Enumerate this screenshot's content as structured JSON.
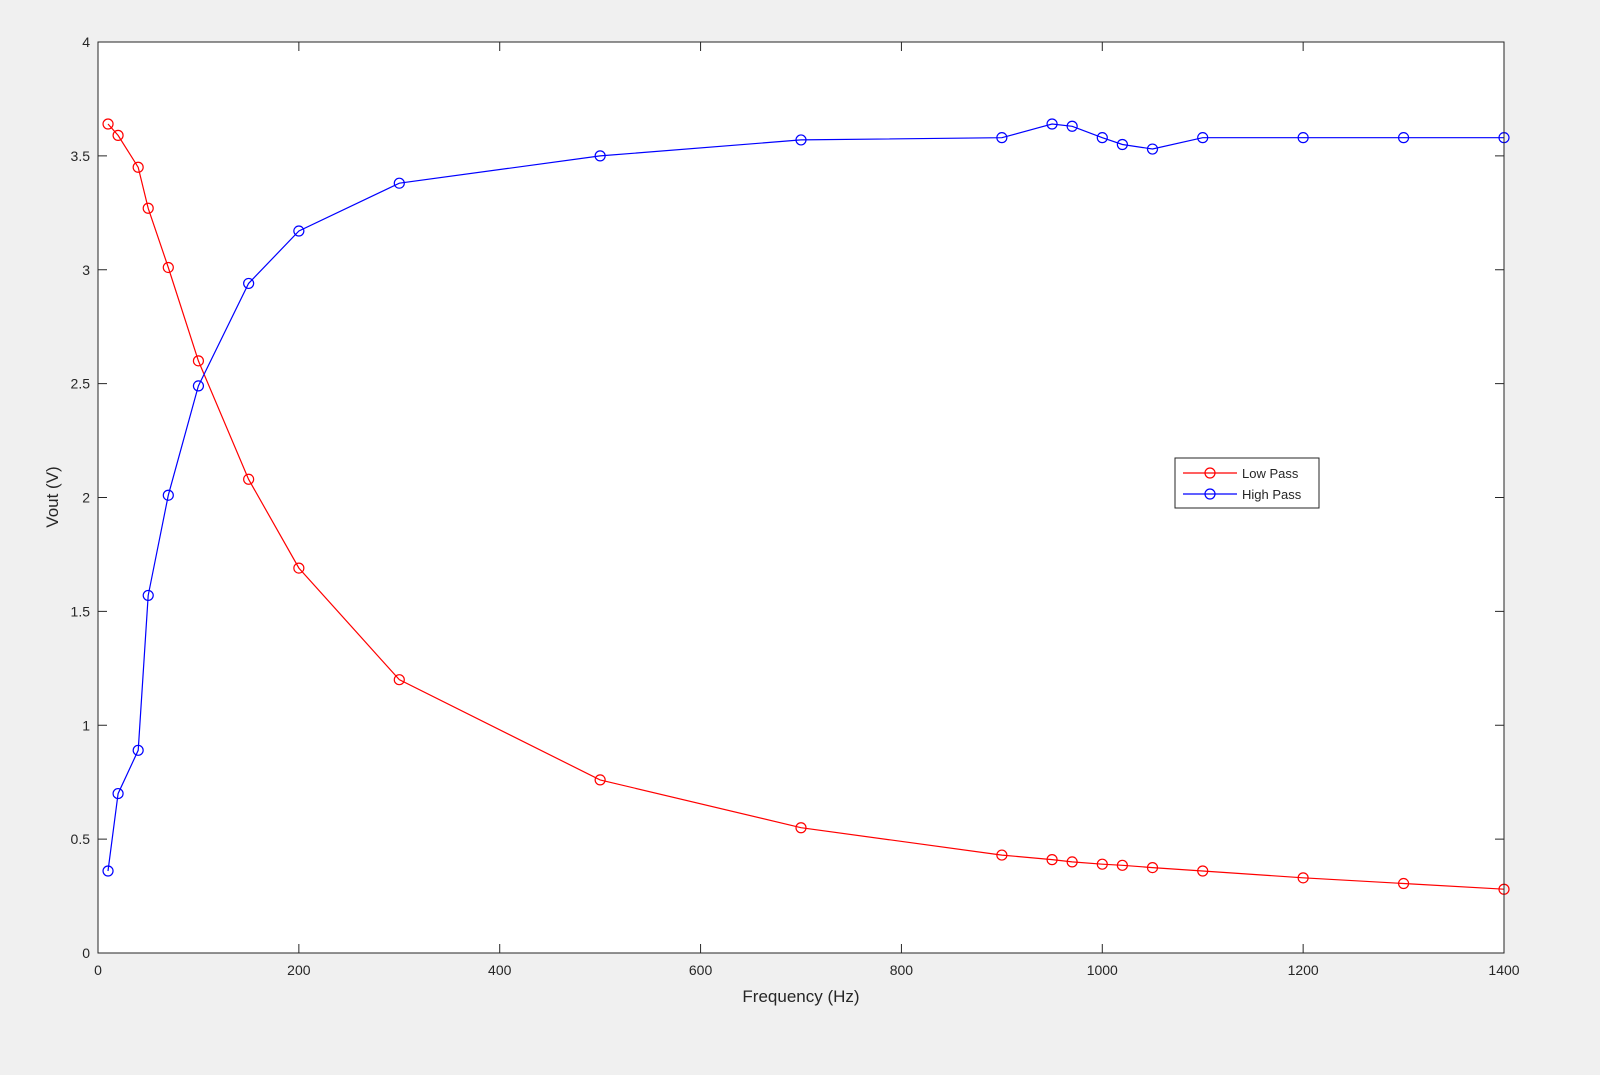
{
  "chart_data": {
    "type": "line",
    "title": "",
    "xlabel": "Frequency (Hz)",
    "ylabel": "Vout (V)",
    "xlim": [
      0,
      1400
    ],
    "ylim": [
      0,
      4
    ],
    "x_ticks": [
      "0",
      "200",
      "400",
      "600",
      "800",
      "1000",
      "1200",
      "1400"
    ],
    "y_ticks": [
      "0",
      "0.5",
      "1",
      "1.5",
      "2",
      "2.5",
      "3",
      "3.5",
      "4"
    ],
    "grid": false,
    "legend_position": "right-center",
    "marker": "circle",
    "series": [
      {
        "name": "Low Pass",
        "color": "#ff0000",
        "x": [
          10,
          20,
          40,
          50,
          70,
          100,
          150,
          200,
          300,
          500,
          700,
          900,
          950,
          970,
          1000,
          1020,
          1050,
          1100,
          1200,
          1300,
          1400
        ],
        "y": [
          3.64,
          3.59,
          3.45,
          3.27,
          3.01,
          2.6,
          2.08,
          1.69,
          1.2,
          0.76,
          0.55,
          0.43,
          0.41,
          0.4,
          0.39,
          0.385,
          0.375,
          0.36,
          0.33,
          0.305,
          0.28
        ]
      },
      {
        "name": "High Pass",
        "color": "#0000ff",
        "x": [
          10,
          20,
          40,
          50,
          70,
          100,
          150,
          200,
          300,
          500,
          700,
          900,
          950,
          970,
          1000,
          1020,
          1050,
          1100,
          1200,
          1300,
          1400
        ],
        "y": [
          0.36,
          0.7,
          0.89,
          1.57,
          2.01,
          2.49,
          2.94,
          3.17,
          3.38,
          3.5,
          3.57,
          3.58,
          3.64,
          3.63,
          3.58,
          3.55,
          3.53,
          3.58,
          3.58,
          3.58,
          3.58
        ]
      }
    ]
  }
}
